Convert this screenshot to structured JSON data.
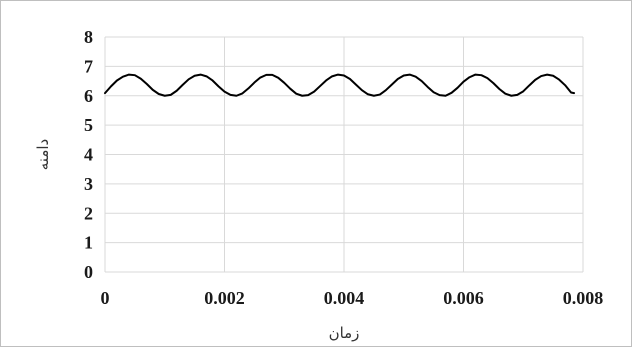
{
  "chart_data": {
    "type": "line",
    "title": "",
    "xlabel": "زمان",
    "ylabel": "دامنه",
    "xlim": [
      0,
      0.008
    ],
    "ylim": [
      0,
      8
    ],
    "x_ticks": [
      "0",
      "0.002",
      "0.004",
      "0.006",
      "0.008"
    ],
    "y_ticks": [
      "0",
      "1",
      "2",
      "3",
      "4",
      "5",
      "6",
      "7",
      "8"
    ],
    "grid": true,
    "legend": "none",
    "colors": {
      "line": "#000000",
      "grid": "#d9d9d9",
      "frame": "#bfbfbf"
    },
    "series": [
      {
        "x": [
          0,
          0.0001,
          0.0002,
          0.0003,
          0.0004,
          0.0005,
          0.0006,
          0.0007,
          0.0008,
          0.0009,
          0.001,
          0.0011,
          0.0012,
          0.0013,
          0.0014,
          0.0015,
          0.0016,
          0.0017,
          0.0018,
          0.0019,
          0.002,
          0.0021,
          0.0022,
          0.0023,
          0.0024,
          0.0025,
          0.0026,
          0.0027,
          0.0028,
          0.0029,
          0.003,
          0.0031,
          0.0032,
          0.0033,
          0.0034,
          0.0035,
          0.0036,
          0.0037,
          0.0038,
          0.0039,
          0.004,
          0.0041,
          0.0042,
          0.0043,
          0.0044,
          0.0045,
          0.0046,
          0.0047,
          0.0048,
          0.0049,
          0.005,
          0.0051,
          0.0052,
          0.0053,
          0.0054,
          0.0055,
          0.0056,
          0.0057,
          0.0058,
          0.0059,
          0.006,
          0.0061,
          0.0062,
          0.0063,
          0.0064,
          0.0065,
          0.0066,
          0.0067,
          0.0068,
          0.0069,
          0.007,
          0.0071,
          0.0072,
          0.0073,
          0.0074,
          0.0075,
          0.0076,
          0.0077,
          0.0078,
          0.00785
        ],
        "values": [
          6.09,
          6.32,
          6.52,
          6.65,
          6.72,
          6.7,
          6.58,
          6.4,
          6.2,
          6.06,
          6.0,
          6.03,
          6.17,
          6.37,
          6.56,
          6.68,
          6.72,
          6.66,
          6.52,
          6.32,
          6.14,
          6.03,
          6.0,
          6.08,
          6.25,
          6.45,
          6.62,
          6.71,
          6.71,
          6.61,
          6.44,
          6.24,
          6.07,
          6.0,
          6.02,
          6.14,
          6.33,
          6.52,
          6.66,
          6.72,
          6.69,
          6.57,
          6.38,
          6.19,
          6.05,
          6.0,
          6.04,
          6.19,
          6.38,
          6.57,
          6.69,
          6.72,
          6.65,
          6.5,
          6.3,
          6.12,
          6.02,
          6.0,
          6.1,
          6.27,
          6.48,
          6.63,
          6.72,
          6.7,
          6.6,
          6.43,
          6.23,
          6.07,
          6.0,
          6.03,
          6.15,
          6.35,
          6.54,
          6.67,
          6.72,
          6.68,
          6.55,
          6.36,
          6.11,
          6.09
        ]
      }
    ]
  }
}
